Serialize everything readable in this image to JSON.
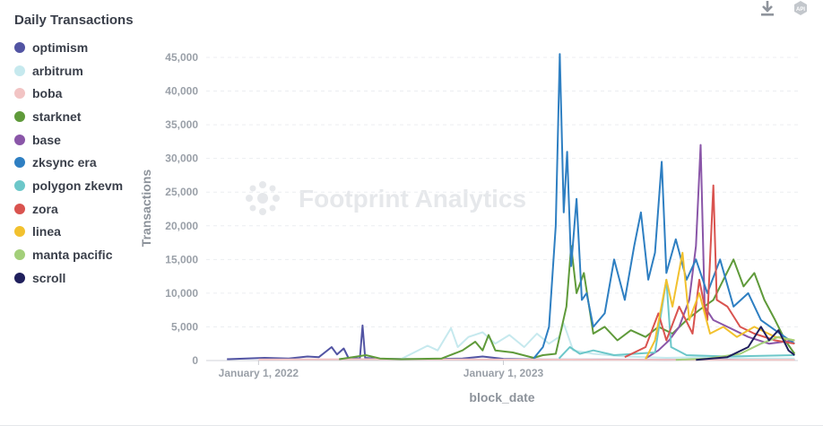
{
  "panel": {
    "title": "Daily Transactions",
    "download_icon": "download-icon",
    "api_icon": "api-icon",
    "api_label": "API"
  },
  "watermark": "Footprint Analytics",
  "chart_data": {
    "type": "line",
    "title": "Daily Transactions",
    "xlabel": "block_date",
    "ylabel": "Transactions",
    "ylim": [
      0,
      45000
    ],
    "xlim": [
      "2021-10-15",
      "2024-03-15"
    ],
    "y_ticks": [
      "0",
      "5,000",
      "10,000",
      "15,000",
      "20,000",
      "25,000",
      "30,000",
      "35,000",
      "40,000",
      "45,000"
    ],
    "y_tick_values": [
      0,
      5000,
      10000,
      15000,
      20000,
      25000,
      30000,
      35000,
      40000,
      45000
    ],
    "x_ticks": [
      "January 1, 2022",
      "January 1, 2023"
    ],
    "x_tick_values": [
      "2022-01-01",
      "2023-01-01"
    ],
    "grid": true,
    "legend": "left",
    "series": [
      {
        "name": "optimism",
        "color": "#5254a3",
        "points": [
          [
            "2021-11-15",
            200
          ],
          [
            "2022-01-10",
            400
          ],
          [
            "2022-02-15",
            300
          ],
          [
            "2022-03-15",
            600
          ],
          [
            "2022-04-01",
            500
          ],
          [
            "2022-04-20",
            2000
          ],
          [
            "2022-04-28",
            900
          ],
          [
            "2022-05-08",
            1800
          ],
          [
            "2022-05-15",
            400
          ],
          [
            "2022-06-01",
            300
          ],
          [
            "2022-06-05",
            5200
          ],
          [
            "2022-06-09",
            400
          ],
          [
            "2022-07-01",
            250
          ],
          [
            "2022-09-01",
            200
          ],
          [
            "2022-11-01",
            300
          ],
          [
            "2022-12-01",
            600
          ],
          [
            "2023-01-01",
            250
          ],
          [
            "2023-03-01",
            150
          ],
          [
            "2023-06-01",
            150
          ],
          [
            "2023-09-01",
            120
          ],
          [
            "2023-12-01",
            150
          ],
          [
            "2024-02-01",
            200
          ],
          [
            "2024-03-10",
            150
          ]
        ]
      },
      {
        "name": "arbitrum",
        "color": "#c6e9ee",
        "points": [
          [
            "2022-08-01",
            200
          ],
          [
            "2022-09-10",
            2200
          ],
          [
            "2022-09-25",
            1500
          ],
          [
            "2022-10-15",
            4800
          ],
          [
            "2022-10-25",
            2000
          ],
          [
            "2022-11-10",
            3500
          ],
          [
            "2022-12-01",
            4200
          ],
          [
            "2022-12-20",
            2500
          ],
          [
            "2023-01-10",
            3800
          ],
          [
            "2023-02-01",
            2000
          ],
          [
            "2023-02-20",
            4000
          ],
          [
            "2023-03-10",
            2500
          ],
          [
            "2023-03-25",
            3500
          ],
          [
            "2023-04-01",
            5500
          ],
          [
            "2023-04-15",
            1500
          ],
          [
            "2023-05-15",
            1000
          ],
          [
            "2023-07-01",
            600
          ],
          [
            "2023-09-01",
            400
          ],
          [
            "2023-11-01",
            500
          ],
          [
            "2024-01-01",
            300
          ],
          [
            "2024-03-10",
            300
          ]
        ]
      },
      {
        "name": "boba",
        "color": "#f2c4c4",
        "points": [
          [
            "2022-01-01",
            150
          ],
          [
            "2022-06-01",
            200
          ],
          [
            "2023-01-01",
            150
          ],
          [
            "2023-06-01",
            120
          ],
          [
            "2024-03-10",
            100
          ]
        ]
      },
      {
        "name": "starknet",
        "color": "#5f9a3a",
        "points": [
          [
            "2022-05-01",
            200
          ],
          [
            "2022-06-10",
            800
          ],
          [
            "2022-07-01",
            300
          ],
          [
            "2022-08-01",
            200
          ],
          [
            "2022-10-01",
            300
          ],
          [
            "2022-11-01",
            1500
          ],
          [
            "2022-11-20",
            2800
          ],
          [
            "2022-12-01",
            1500
          ],
          [
            "2022-12-10",
            3800
          ],
          [
            "2022-12-20",
            1500
          ],
          [
            "2023-01-15",
            1200
          ],
          [
            "2023-02-15",
            400
          ],
          [
            "2023-03-01",
            800
          ],
          [
            "2023-03-20",
            1000
          ],
          [
            "2023-04-05",
            8000
          ],
          [
            "2023-04-12",
            17000
          ],
          [
            "2023-04-20",
            10000
          ],
          [
            "2023-05-01",
            13000
          ],
          [
            "2023-05-15",
            4000
          ],
          [
            "2023-06-01",
            5000
          ],
          [
            "2023-06-20",
            3000
          ],
          [
            "2023-07-10",
            4500
          ],
          [
            "2023-08-01",
            3500
          ],
          [
            "2023-08-20",
            5000
          ],
          [
            "2023-09-10",
            4000
          ],
          [
            "2023-10-01",
            6000
          ],
          [
            "2023-10-20",
            7500
          ],
          [
            "2023-11-10",
            9000
          ],
          [
            "2023-11-25",
            12000
          ],
          [
            "2023-12-10",
            15000
          ],
          [
            "2023-12-25",
            11000
          ],
          [
            "2024-01-10",
            13000
          ],
          [
            "2024-01-25",
            9000
          ],
          [
            "2024-02-10",
            6000
          ],
          [
            "2024-02-25",
            3000
          ],
          [
            "2024-03-10",
            1000
          ]
        ]
      },
      {
        "name": "base",
        "color": "#8a56a8",
        "points": [
          [
            "2023-08-01",
            300
          ],
          [
            "2023-08-20",
            1500
          ],
          [
            "2023-09-05",
            3000
          ],
          [
            "2023-09-20",
            5000
          ],
          [
            "2023-10-05",
            9000
          ],
          [
            "2023-10-15",
            17000
          ],
          [
            "2023-10-22",
            32000
          ],
          [
            "2023-10-28",
            8000
          ],
          [
            "2023-11-10",
            6000
          ],
          [
            "2023-12-01",
            5000
          ],
          [
            "2024-01-01",
            3500
          ],
          [
            "2024-02-01",
            2500
          ],
          [
            "2024-03-10",
            3000
          ]
        ]
      },
      {
        "name": "zksync era",
        "color": "#2e7fc2",
        "points": [
          [
            "2023-02-15",
            300
          ],
          [
            "2023-03-01",
            2000
          ],
          [
            "2023-03-10",
            5000
          ],
          [
            "2023-03-20",
            20000
          ],
          [
            "2023-03-26",
            45500
          ],
          [
            "2023-04-01",
            22000
          ],
          [
            "2023-04-06",
            31000
          ],
          [
            "2023-04-12",
            14000
          ],
          [
            "2023-04-20",
            24000
          ],
          [
            "2023-04-28",
            9000
          ],
          [
            "2023-05-05",
            10000
          ],
          [
            "2023-05-15",
            5000
          ],
          [
            "2023-06-01",
            7000
          ],
          [
            "2023-06-15",
            15000
          ],
          [
            "2023-07-01",
            9000
          ],
          [
            "2023-07-15",
            17000
          ],
          [
            "2023-07-25",
            22000
          ],
          [
            "2023-08-05",
            12000
          ],
          [
            "2023-08-15",
            16000
          ],
          [
            "2023-08-25",
            29500
          ],
          [
            "2023-09-01",
            13000
          ],
          [
            "2023-09-15",
            18000
          ],
          [
            "2023-10-01",
            12000
          ],
          [
            "2023-10-15",
            15000
          ],
          [
            "2023-11-01",
            10000
          ],
          [
            "2023-11-20",
            15000
          ],
          [
            "2023-12-10",
            8000
          ],
          [
            "2024-01-01",
            10000
          ],
          [
            "2024-01-20",
            6000
          ],
          [
            "2024-02-10",
            4500
          ],
          [
            "2024-03-10",
            2500
          ]
        ]
      },
      {
        "name": "polygon zkevm",
        "color": "#6cc7c9",
        "points": [
          [
            "2023-03-25",
            300
          ],
          [
            "2023-04-10",
            2000
          ],
          [
            "2023-04-25",
            1000
          ],
          [
            "2023-05-15",
            1500
          ],
          [
            "2023-06-15",
            800
          ],
          [
            "2023-08-15",
            1200
          ],
          [
            "2023-09-01",
            12000
          ],
          [
            "2023-09-08",
            2000
          ],
          [
            "2023-10-01",
            800
          ],
          [
            "2023-12-01",
            600
          ],
          [
            "2024-03-10",
            800
          ]
        ]
      },
      {
        "name": "zora",
        "color": "#d9534f",
        "points": [
          [
            "2023-07-01",
            500
          ],
          [
            "2023-08-01",
            2000
          ],
          [
            "2023-08-20",
            7000
          ],
          [
            "2023-09-01",
            3000
          ],
          [
            "2023-09-20",
            8000
          ],
          [
            "2023-10-10",
            4000
          ],
          [
            "2023-10-20",
            12000
          ],
          [
            "2023-11-01",
            6000
          ],
          [
            "2023-11-10",
            26000
          ],
          [
            "2023-11-15",
            9000
          ],
          [
            "2023-12-01",
            8000
          ],
          [
            "2023-12-20",
            5000
          ],
          [
            "2024-01-10",
            4000
          ],
          [
            "2024-02-10",
            3000
          ],
          [
            "2024-03-10",
            2500
          ]
        ]
      },
      {
        "name": "linea",
        "color": "#f2c12e",
        "points": [
          [
            "2023-08-01",
            200
          ],
          [
            "2023-08-15",
            3000
          ],
          [
            "2023-09-01",
            12000
          ],
          [
            "2023-09-10",
            8000
          ],
          [
            "2023-09-25",
            16000
          ],
          [
            "2023-10-05",
            6000
          ],
          [
            "2023-10-20",
            10000
          ],
          [
            "2023-11-05",
            4000
          ],
          [
            "2023-11-25",
            5000
          ],
          [
            "2023-12-15",
            3500
          ],
          [
            "2024-01-10",
            5000
          ],
          [
            "2024-02-10",
            3500
          ],
          [
            "2024-03-10",
            3000
          ]
        ]
      },
      {
        "name": "manta pacific",
        "color": "#a3cf7a",
        "points": [
          [
            "2023-09-15",
            100
          ],
          [
            "2023-11-01",
            300
          ],
          [
            "2023-12-20",
            1000
          ],
          [
            "2024-01-20",
            2500
          ],
          [
            "2024-02-15",
            3500
          ],
          [
            "2024-03-10",
            3000
          ]
        ]
      },
      {
        "name": "scroll",
        "color": "#1f1f5c",
        "points": [
          [
            "2023-10-15",
            100
          ],
          [
            "2023-12-01",
            500
          ],
          [
            "2024-01-01",
            2000
          ],
          [
            "2024-01-20",
            5000
          ],
          [
            "2024-02-01",
            3000
          ],
          [
            "2024-02-15",
            4500
          ],
          [
            "2024-03-01",
            1500
          ],
          [
            "2024-03-10",
            800
          ]
        ]
      }
    ]
  }
}
